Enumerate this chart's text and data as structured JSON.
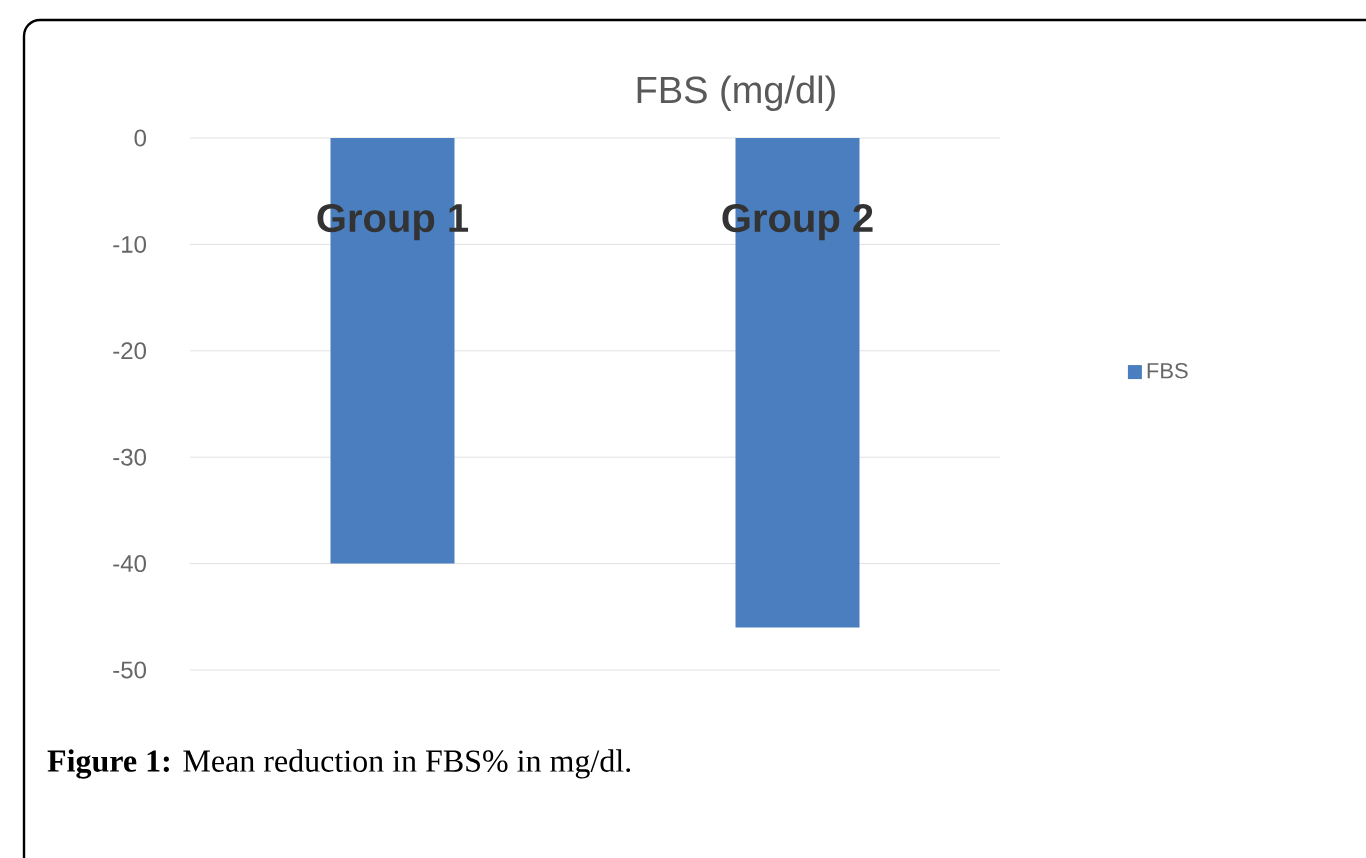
{
  "chart_data": {
    "type": "bar",
    "title": "FBS (mg/dl)",
    "categories": [
      "Group 1",
      "Group 2"
    ],
    "series": [
      {
        "name": "FBS",
        "color": "#4a7ebf",
        "values": [
          -40,
          -46
        ]
      }
    ],
    "ylim": [
      -50,
      0
    ],
    "yticks": [
      0,
      -10,
      -20,
      -30,
      -40,
      -50
    ],
    "grid": "y",
    "legend": "right",
    "annotations": [
      "**Figure 1:** Mean reduction in FBS% in mg/dl."
    ]
  }
}
